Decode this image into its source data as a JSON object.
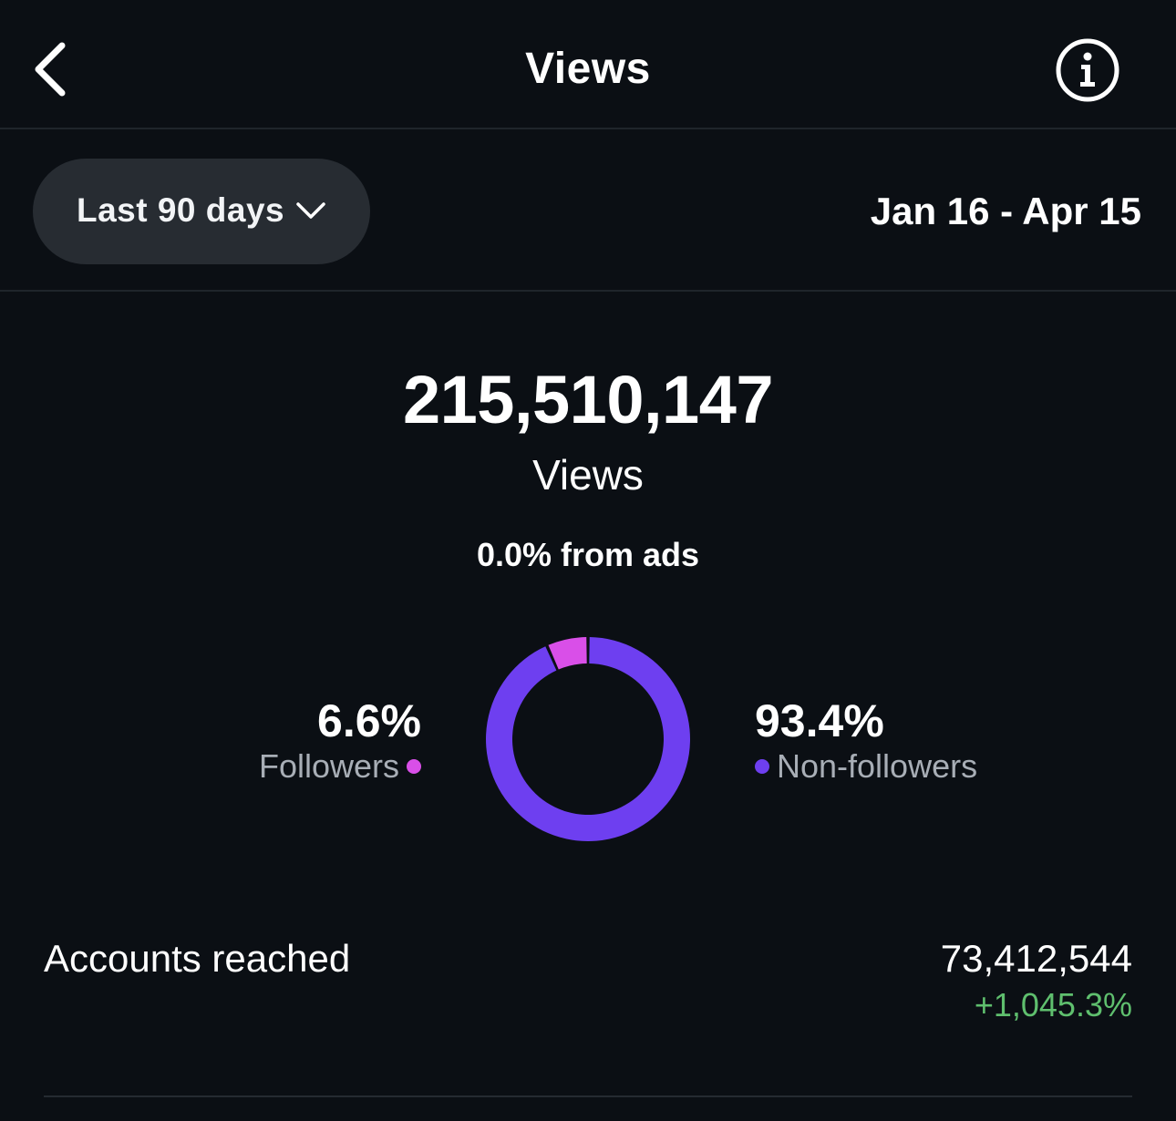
{
  "header": {
    "title": "Views",
    "back_icon": "chevron-left-icon",
    "info_icon": "info-circle-icon"
  },
  "filter": {
    "range_label": "Last 90 days",
    "range_icon": "chevron-down-icon",
    "date_range": "Jan 16 - Apr 15"
  },
  "summary": {
    "total_views": "215,510,147",
    "views_caption": "Views",
    "ads_line": "0.0% from ads"
  },
  "breakdown": {
    "followers": {
      "percent_label": "6.6%",
      "label": "Followers",
      "value": 6.6,
      "color": "#d94fe8"
    },
    "non_followers": {
      "percent_label": "93.4%",
      "label": "Non-followers",
      "value": 93.4,
      "color": "#6e3ff0"
    }
  },
  "accounts_reached": {
    "label": "Accounts reached",
    "value": "73,412,544",
    "change": "+1,045.3%",
    "change_color": "#5fbf6e"
  }
}
